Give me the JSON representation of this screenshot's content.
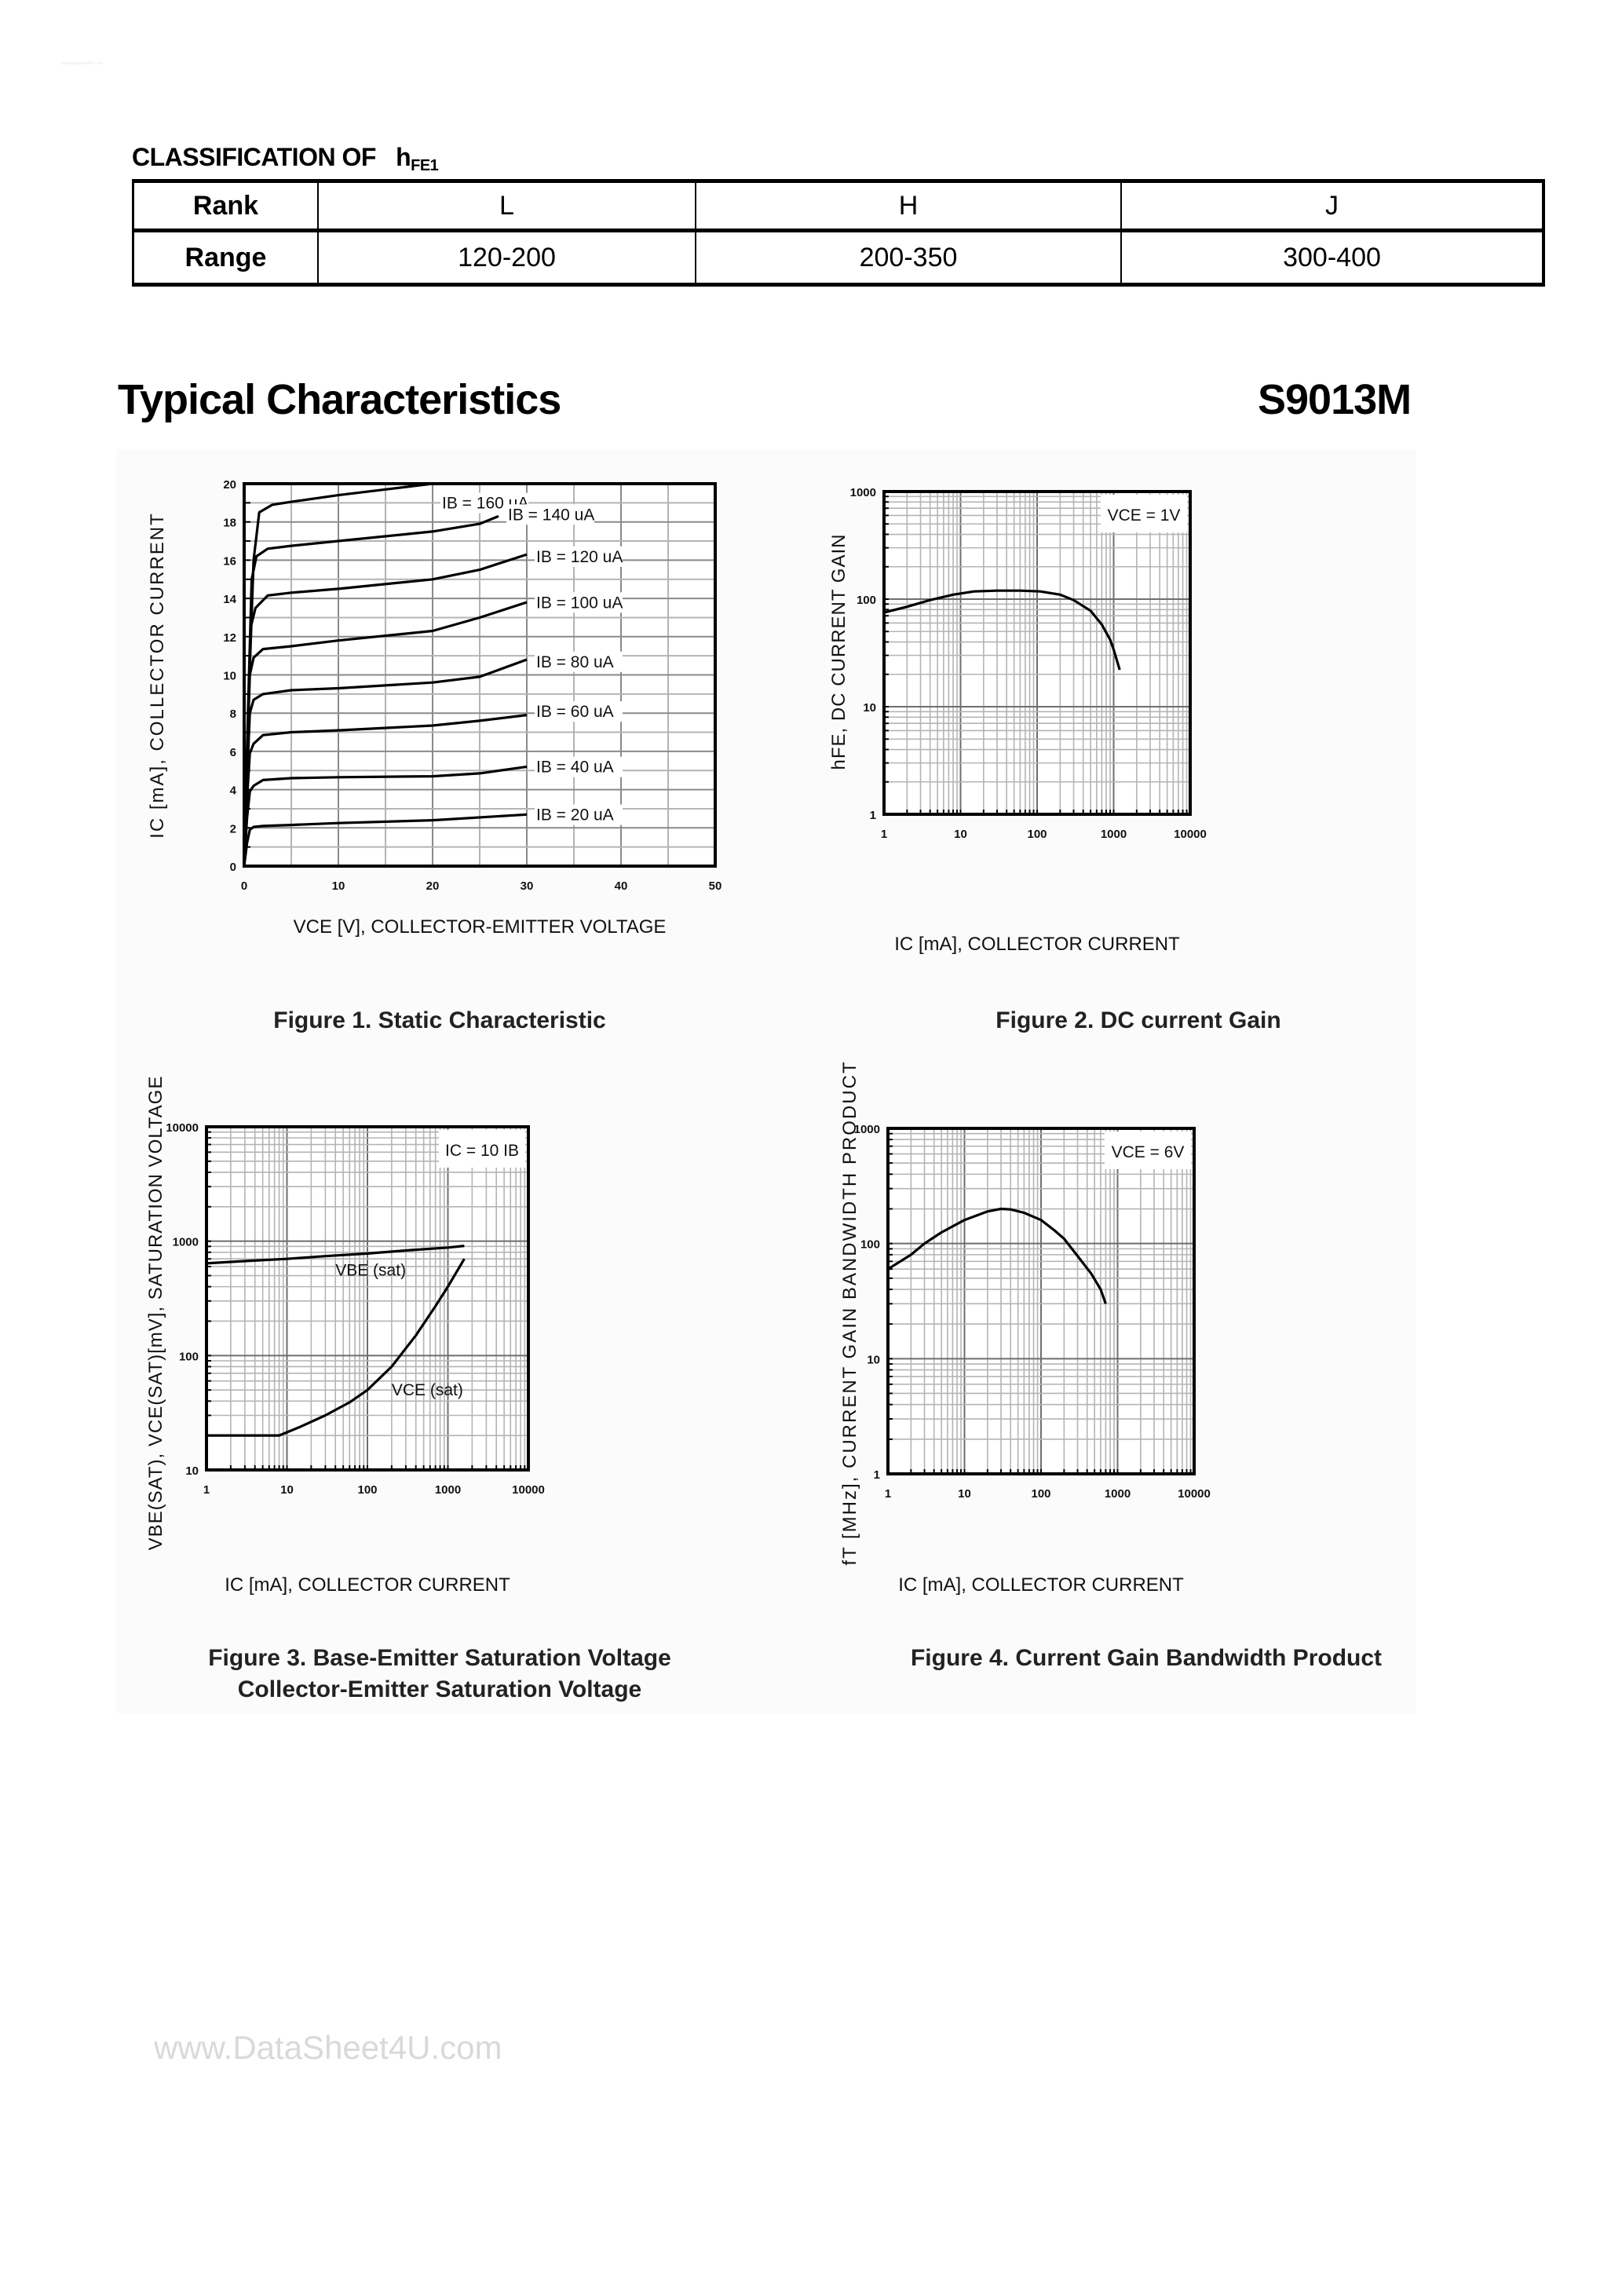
{
  "watermark_small": "www.DataSheet4U.com",
  "classification": {
    "title_prefix": "CLASSIFICATION OF",
    "title_symbol": "h",
    "title_subscript": "FE1",
    "rows": [
      {
        "header": "Rank",
        "cells": [
          "L",
          "H",
          "J"
        ]
      },
      {
        "header": "Range",
        "cells": [
          "120-200",
          "200-350",
          "300-400"
        ]
      }
    ]
  },
  "section": {
    "title": "Typical Characteristics",
    "part_number": "S9013M"
  },
  "figures": [
    {
      "caption": "Figure 1. Static Characteristic",
      "xlabel": "VCE [V], COLLECTOR-EMITTER VOLTAGE",
      "ylabel": "IC [mA], COLLECTOR CURRENT"
    },
    {
      "caption": "Figure 2. DC current Gain",
      "xlabel": "IC [mA], COLLECTOR CURRENT",
      "ylabel": "hFE, DC CURRENT GAIN",
      "annotation": "VCE = 1V"
    },
    {
      "caption_line1": "Figure 3. Base-Emitter Saturation Voltage",
      "caption_line2": "Collector-Emitter Saturation Voltage",
      "xlabel": "IC [mA], COLLECTOR CURRENT",
      "ylabel": "VBE(SAT), VCE(SAT)[mV], SATURATION VOLTAGE",
      "annotation": "IC = 10 IB"
    },
    {
      "caption": "Figure 4. Current Gain Bandwidth Product",
      "xlabel": "IC [mA], COLLECTOR CURRENT",
      "ylabel": "fT [MHz], CURRENT GAIN BANDWIDTH PRODUCT",
      "annotation": "VCE = 6V"
    }
  ],
  "watermark": "www.DataSheet4U.com",
  "chart_data": [
    {
      "type": "line",
      "title": "Figure 1. Static Characteristic",
      "xlabel": "VCE [V], COLLECTOR-EMITTER VOLTAGE",
      "ylabel": "IC [mA], COLLECTOR CURRENT",
      "xlim": [
        0,
        50
      ],
      "ylim": [
        0,
        20
      ],
      "xticks": [
        0,
        10,
        20,
        30,
        40,
        50
      ],
      "yticks": [
        0,
        2,
        4,
        6,
        8,
        10,
        12,
        14,
        16,
        18,
        20
      ],
      "grid": true,
      "series": [
        {
          "name": "IB = 20 uA",
          "x": [
            0,
            0.3,
            0.6,
            1,
            2,
            5,
            10,
            20,
            30
          ],
          "y": [
            0,
            1.2,
            1.9,
            2.05,
            2.1,
            2.15,
            2.25,
            2.4,
            2.7
          ]
        },
        {
          "name": "IB = 40 uA",
          "x": [
            0,
            0.3,
            0.6,
            1,
            2,
            5,
            10,
            20,
            25,
            30
          ],
          "y": [
            0,
            2.5,
            3.9,
            4.2,
            4.5,
            4.6,
            4.65,
            4.7,
            4.85,
            5.2
          ]
        },
        {
          "name": "IB = 60 uA",
          "x": [
            0,
            0.3,
            0.6,
            1,
            2,
            5,
            10,
            20,
            25,
            30
          ],
          "y": [
            0,
            3.5,
            5.9,
            6.4,
            6.85,
            7.0,
            7.1,
            7.35,
            7.6,
            7.9
          ]
        },
        {
          "name": "IB = 80 uA",
          "x": [
            0,
            0.3,
            0.6,
            1,
            2,
            5,
            10,
            20,
            25,
            30
          ],
          "y": [
            0,
            4.5,
            8.0,
            8.7,
            9.0,
            9.2,
            9.3,
            9.6,
            9.9,
            10.8
          ]
        },
        {
          "name": "IB = 100 uA",
          "x": [
            0,
            0.3,
            0.6,
            1,
            2,
            5,
            10,
            20,
            25,
            30
          ],
          "y": [
            0,
            5.5,
            10,
            10.9,
            11.35,
            11.5,
            11.8,
            12.3,
            13.0,
            13.8
          ]
        },
        {
          "name": "IB = 120 uA",
          "x": [
            0,
            0.4,
            0.7,
            1.2,
            2.5,
            5,
            10,
            20,
            25,
            30
          ],
          "y": [
            0,
            7,
            12.5,
            13.5,
            14.15,
            14.3,
            14.5,
            15.0,
            15.5,
            16.3
          ]
        },
        {
          "name": "IB = 140 uA",
          "x": [
            0,
            0.4,
            0.8,
            1.3,
            2.5,
            5,
            10,
            20,
            25,
            27
          ],
          "y": [
            0,
            8,
            15,
            16.2,
            16.6,
            16.75,
            17.0,
            17.5,
            17.9,
            18.3
          ]
        },
        {
          "name": "IB = 160 uA",
          "x": [
            0,
            0.5,
            1.0,
            1.6,
            3,
            5,
            10,
            15,
            20
          ],
          "y": [
            0,
            9,
            16,
            18.5,
            18.9,
            19.05,
            19.4,
            19.7,
            20.0
          ]
        }
      ]
    },
    {
      "type": "line",
      "title": "Figure 2. DC current Gain",
      "xlabel": "IC [mA], COLLECTOR CURRENT",
      "ylabel": "hFE, DC CURRENT GAIN",
      "xscale": "log",
      "yscale": "log",
      "xlim": [
        1,
        10000
      ],
      "ylim": [
        1,
        1000
      ],
      "xticks": [
        1,
        10,
        100,
        1000,
        10000
      ],
      "yticks": [
        1,
        10,
        100,
        1000
      ],
      "grid": true,
      "annotation": "VCE = 1V",
      "series": [
        {
          "name": "hFE",
          "x": [
            1,
            2,
            4,
            8,
            15,
            30,
            60,
            110,
            200,
            300,
            500,
            700,
            900,
            1000,
            1200
          ],
          "y": [
            75,
            85,
            98,
            110,
            118,
            120,
            120,
            118,
            110,
            98,
            78,
            58,
            42,
            34,
            22
          ]
        }
      ]
    },
    {
      "type": "line",
      "title": "Figure 3. Base-Emitter Saturation Voltage / Collector-Emitter Saturation Voltage",
      "xlabel": "IC [mA], COLLECTOR CURRENT",
      "ylabel": "VBE(SAT), VCE(SAT)[mV], SATURATION VOLTAGE",
      "xscale": "log",
      "yscale": "log",
      "xlim": [
        1,
        10000
      ],
      "ylim": [
        10,
        10000
      ],
      "xticks": [
        1,
        10,
        100,
        1000,
        10000
      ],
      "yticks": [
        10,
        100,
        1000,
        10000
      ],
      "grid": true,
      "annotation": "IC = 10 IB",
      "series": [
        {
          "name": "VBE (sat)",
          "x": [
            1,
            3,
            10,
            30,
            100,
            300,
            1000,
            1600
          ],
          "y": [
            640,
            670,
            700,
            740,
            780,
            830,
            880,
            910
          ]
        },
        {
          "name": "VCE (sat)",
          "x": [
            1,
            5,
            8,
            15,
            30,
            60,
            100,
            200,
            400,
            700,
            1000,
            1600
          ],
          "y": [
            20,
            20,
            20,
            24,
            30,
            39,
            50,
            80,
            150,
            270,
            400,
            700
          ]
        }
      ]
    },
    {
      "type": "line",
      "title": "Figure 4. Current Gain Bandwidth Product",
      "xlabel": "IC [mA], COLLECTOR CURRENT",
      "ylabel": "fT [MHz], CURRENT GAIN BANDWIDTH PRODUCT",
      "xscale": "log",
      "yscale": "log",
      "xlim": [
        1,
        10000
      ],
      "ylim": [
        1,
        1000
      ],
      "xticks": [
        1,
        10,
        100,
        1000,
        10000
      ],
      "yticks": [
        1,
        10,
        100,
        1000
      ],
      "grid": true,
      "annotation": "VCE = 6V",
      "series": [
        {
          "name": "fT",
          "x": [
            1,
            2,
            3,
            5,
            10,
            20,
            30,
            40,
            60,
            100,
            150,
            200,
            300,
            450,
            600,
            700
          ],
          "y": [
            60,
            80,
            100,
            125,
            160,
            190,
            200,
            198,
            185,
            160,
            130,
            110,
            78,
            55,
            40,
            30
          ]
        }
      ]
    }
  ]
}
